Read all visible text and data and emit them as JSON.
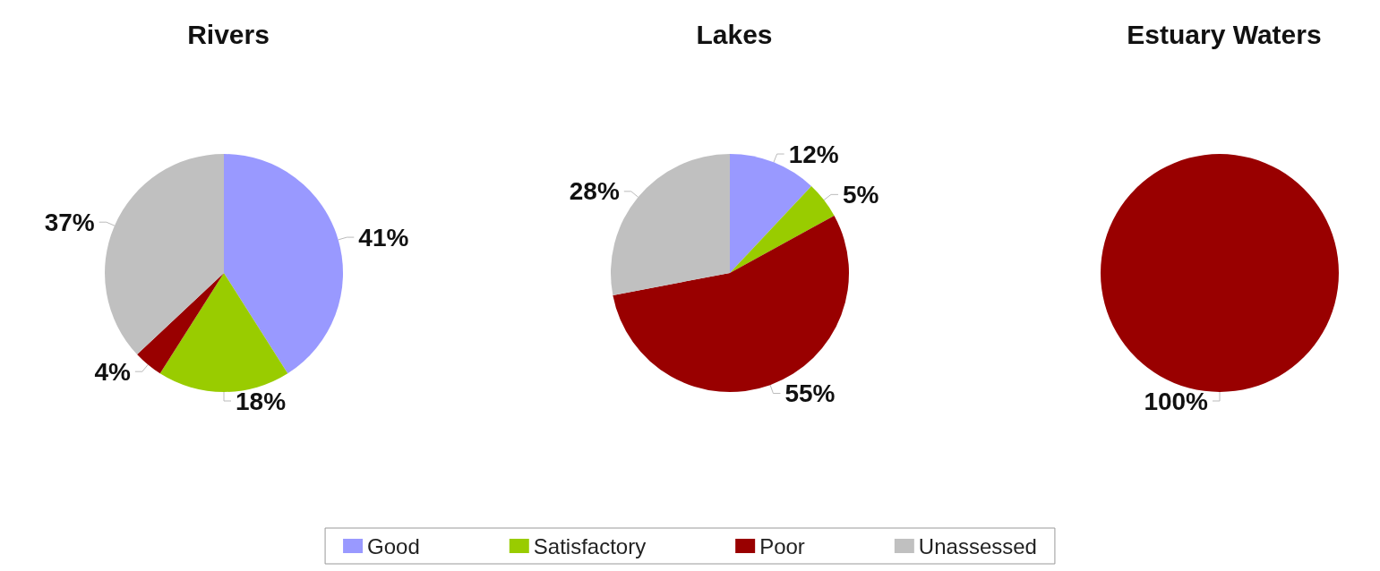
{
  "chart_data": {
    "type": "pie",
    "categories": [
      "Good",
      "Satisfactory",
      "Poor",
      "Unassessed"
    ],
    "colors": [
      "#9999ff",
      "#99cc00",
      "#990000",
      "#c0c0c0"
    ],
    "legend": "bottom",
    "series": [
      {
        "name": "Rivers",
        "values": [
          41,
          18,
          4,
          37
        ],
        "value_labels": [
          "41%",
          "18%",
          "4%",
          "37%"
        ]
      },
      {
        "name": "Lakes",
        "values": [
          12,
          5,
          55,
          28
        ],
        "value_labels": [
          "12%",
          "5%",
          "55%",
          "28%"
        ]
      },
      {
        "name": "Estuary Waters",
        "values": [
          0,
          0,
          100,
          0
        ],
        "value_labels": [
          null,
          null,
          "100%",
          null
        ]
      }
    ]
  }
}
